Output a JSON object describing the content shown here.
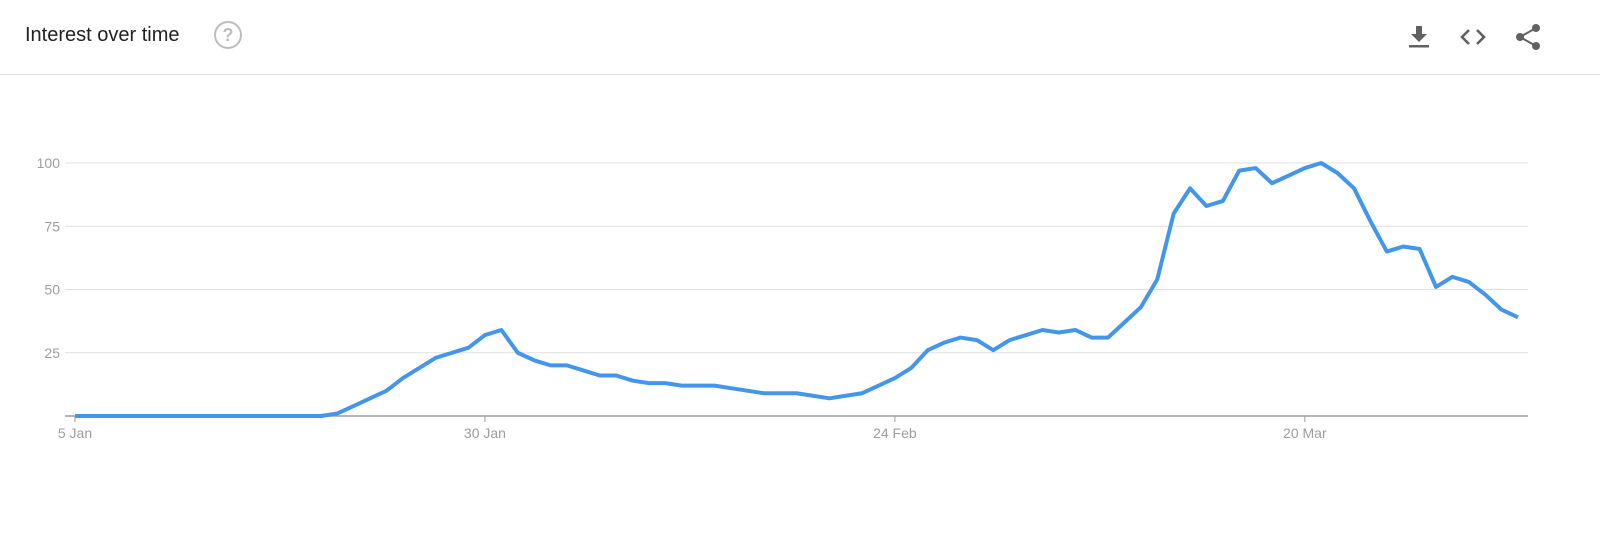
{
  "header": {
    "title": "Interest over time",
    "help_icon": "help-circle-icon",
    "actions": [
      "download-icon",
      "embed-code-icon",
      "share-icon"
    ]
  },
  "colors": {
    "line": "#4496ec",
    "grid": "#e0e0e0",
    "axis": "#9e9e9e",
    "tick_text": "#9e9e9e"
  },
  "chart_data": {
    "type": "line",
    "title": "Interest over time",
    "x_start": "2020-01-05",
    "x_end": "2020-04-02",
    "x_interval": "1 day",
    "xticks": [
      {
        "label": "5 Jan",
        "date": "2020-01-05"
      },
      {
        "label": "30 Jan",
        "date": "2020-01-30"
      },
      {
        "label": "24 Feb",
        "date": "2020-02-24"
      },
      {
        "label": "20 Mar",
        "date": "2020-03-20"
      }
    ],
    "yticks": [
      "25",
      "50",
      "75",
      "100"
    ],
    "ylim": [
      0,
      100
    ],
    "grid": true,
    "values": [
      0,
      0,
      0,
      0,
      0,
      0,
      0,
      0,
      0,
      0,
      0,
      0,
      0,
      0,
      0,
      0,
      1,
      4,
      7,
      10,
      15,
      19,
      23,
      25,
      27,
      32,
      34,
      25,
      22,
      20,
      20,
      18,
      16,
      16,
      14,
      13,
      13,
      12,
      12,
      12,
      11,
      10,
      9,
      9,
      9,
      8,
      7,
      8,
      9,
      12,
      15,
      19,
      26,
      29,
      31,
      30,
      26,
      30,
      32,
      34,
      33,
      34,
      31,
      31,
      37,
      43,
      54,
      80,
      90,
      83,
      85,
      97,
      98,
      92,
      95,
      98,
      100,
      96,
      90,
      77,
      65,
      67,
      66,
      51,
      55,
      53,
      48,
      42,
      39
    ]
  }
}
